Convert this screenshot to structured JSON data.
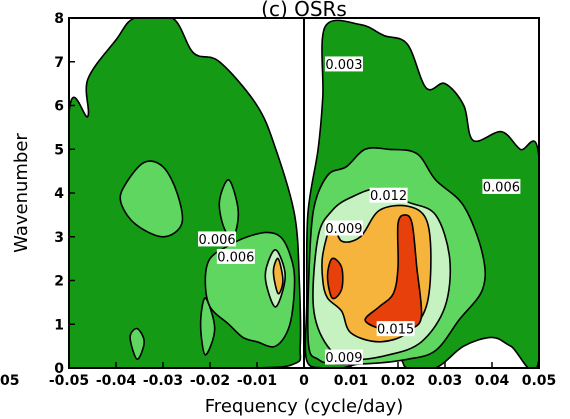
{
  "chart_data": {
    "type": "contour",
    "title": "(c) OSRs",
    "xlabel": "Frequency (cycle/day)",
    "ylabel": "Wavenumber",
    "xlim": [
      -0.05,
      0.05
    ],
    "ylim": [
      0,
      8
    ],
    "x_ticks": [
      {
        "value": -0.05,
        "label": "-0.05"
      },
      {
        "value": -0.04,
        "label": "-0.04"
      },
      {
        "value": -0.03,
        "label": "-0.03"
      },
      {
        "value": -0.02,
        "label": "-0.02"
      },
      {
        "value": -0.01,
        "label": "-0.01"
      },
      {
        "value": 0,
        "label": "0"
      },
      {
        "value": 0.01,
        "label": "0.01"
      },
      {
        "value": 0.02,
        "label": "0.02"
      },
      {
        "value": 0.03,
        "label": "0.03"
      },
      {
        "value": 0.04,
        "label": "0.04"
      },
      {
        "value": 0.05,
        "label": "0.05"
      }
    ],
    "y_ticks": [
      {
        "value": 0,
        "label": "0"
      },
      {
        "value": 1,
        "label": "1"
      },
      {
        "value": 2,
        "label": "2"
      },
      {
        "value": 3,
        "label": "3"
      },
      {
        "value": 4,
        "label": "4"
      },
      {
        "value": 5,
        "label": "5"
      },
      {
        "value": 6,
        "label": "6"
      },
      {
        "value": 7,
        "label": "7"
      },
      {
        "value": 8,
        "label": "8"
      }
    ],
    "left_edge_fragment": "05",
    "levels": [
      0.003,
      0.006,
      0.009,
      0.012,
      0.015
    ],
    "level_colors": [
      "#159A15",
      "#5FD65F",
      "#C5F2C0",
      "#F6B43C",
      "#E8400A"
    ],
    "regions": [
      {
        "level": 0.003,
        "points": [
          [
            -0.05,
            5.8
          ],
          [
            -0.046,
            5.75
          ],
          [
            -0.046,
            6.6
          ],
          [
            -0.04,
            7.5
          ],
          [
            -0.036,
            8
          ],
          [
            -0.028,
            8
          ],
          [
            -0.0235,
            7.2
          ],
          [
            -0.018,
            7.0
          ],
          [
            -0.01,
            6.0
          ],
          [
            -0.006,
            5.0
          ],
          [
            -0.002,
            3.5
          ],
          [
            -0.001,
            2.0
          ],
          [
            -0.0008,
            0.5
          ],
          [
            -0.002,
            0.1
          ],
          [
            -0.012,
            0.0
          ],
          [
            -0.05,
            0.0
          ]
        ]
      },
      {
        "level": 0.003,
        "points": [
          [
            0.0005,
            0.2
          ],
          [
            0.0006,
            1.5
          ],
          [
            0.0008,
            3.5
          ],
          [
            0.003,
            5.0
          ],
          [
            0.004,
            6.2
          ],
          [
            0.0045,
            7.8
          ],
          [
            0.012,
            7.85
          ],
          [
            0.017,
            7.6
          ],
          [
            0.022,
            7.4
          ],
          [
            0.026,
            6.4
          ],
          [
            0.03,
            6.5
          ],
          [
            0.034,
            6.0
          ],
          [
            0.036,
            5.2
          ],
          [
            0.042,
            5.4
          ],
          [
            0.046,
            5.0
          ],
          [
            0.05,
            4.8
          ],
          [
            0.05,
            0.2
          ],
          [
            0.044,
            0.5
          ],
          [
            0.04,
            0.7
          ],
          [
            0.034,
            0.5
          ],
          [
            0.028,
            0.0
          ],
          [
            0.022,
            0.0
          ],
          [
            0.02,
            0.2
          ],
          [
            0.012,
            0.1
          ],
          [
            0.008,
            0.0
          ],
          [
            0.004,
            0.0
          ]
        ]
      },
      {
        "level": 0.006,
        "points": [
          [
            -0.038,
            4.2
          ],
          [
            -0.034,
            4.7
          ],
          [
            -0.03,
            4.6
          ],
          [
            -0.027,
            4.0
          ],
          [
            -0.026,
            3.3
          ],
          [
            -0.03,
            3.0
          ],
          [
            -0.036,
            3.3
          ],
          [
            -0.039,
            3.8
          ]
        ]
      },
      {
        "level": 0.006,
        "points": [
          [
            -0.018,
            3.8
          ],
          [
            -0.016,
            4.3
          ],
          [
            -0.014,
            3.6
          ],
          [
            -0.015,
            3.0
          ],
          [
            -0.017,
            3.2
          ]
        ]
      },
      {
        "level": 0.006,
        "points": [
          [
            -0.02,
            2.5
          ],
          [
            -0.016,
            2.8
          ],
          [
            -0.012,
            3.0
          ],
          [
            -0.008,
            3.1
          ],
          [
            -0.005,
            3.0
          ],
          [
            -0.003,
            2.6
          ],
          [
            -0.002,
            2.0
          ],
          [
            -0.003,
            1.0
          ],
          [
            -0.006,
            0.5
          ],
          [
            -0.01,
            0.6
          ],
          [
            -0.013,
            0.7
          ],
          [
            -0.016,
            1.0
          ],
          [
            -0.02,
            1.4
          ],
          [
            -0.021,
            2.0
          ]
        ]
      },
      {
        "level": 0.006,
        "points": [
          [
            -0.037,
            0.7
          ],
          [
            -0.0355,
            0.2
          ],
          [
            -0.034,
            0.6
          ],
          [
            -0.0355,
            0.9
          ]
        ]
      },
      {
        "level": 0.006,
        "points": [
          [
            -0.022,
            1.0
          ],
          [
            -0.021,
            1.6
          ],
          [
            -0.019,
            0.9
          ],
          [
            -0.021,
            0.3
          ]
        ]
      },
      {
        "level": 0.006,
        "points": [
          [
            0.001,
            0.5
          ],
          [
            0.001,
            2.0
          ],
          [
            0.002,
            3.6
          ],
          [
            0.005,
            4.4
          ],
          [
            0.009,
            4.6
          ],
          [
            0.013,
            5.0
          ],
          [
            0.018,
            5.0
          ],
          [
            0.024,
            4.9
          ],
          [
            0.028,
            4.3
          ],
          [
            0.034,
            3.7
          ],
          [
            0.038,
            2.6
          ],
          [
            0.038,
            1.8
          ],
          [
            0.033,
            1.1
          ],
          [
            0.028,
            0.4
          ],
          [
            0.022,
            0.2
          ],
          [
            0.014,
            0.1
          ],
          [
            0.006,
            0.1
          ],
          [
            0.003,
            0.2
          ]
        ]
      },
      {
        "level": 0.009,
        "points": [
          [
            0.002,
            1.4
          ],
          [
            0.003,
            3.0
          ],
          [
            0.006,
            3.6
          ],
          [
            0.01,
            3.9
          ],
          [
            0.016,
            4.1
          ],
          [
            0.022,
            3.8
          ],
          [
            0.028,
            3.5
          ],
          [
            0.031,
            2.5
          ],
          [
            0.03,
            1.4
          ],
          [
            0.025,
            0.6
          ],
          [
            0.018,
            0.3
          ],
          [
            0.01,
            0.2
          ],
          [
            0.005,
            0.5
          ]
        ]
      },
      {
        "level": 0.009,
        "points": [
          [
            -0.008,
            2.3
          ],
          [
            -0.006,
            2.7
          ],
          [
            -0.004,
            2.1
          ],
          [
            -0.006,
            1.4
          ],
          [
            -0.008,
            1.9
          ]
        ]
      },
      {
        "level": 0.012,
        "points": [
          [
            0.004,
            2.6
          ],
          [
            0.006,
            3.3
          ],
          [
            0.008,
            2.9
          ],
          [
            0.012,
            3.0
          ],
          [
            0.016,
            3.6
          ],
          [
            0.022,
            3.7
          ],
          [
            0.026,
            3.4
          ],
          [
            0.027,
            2.5
          ],
          [
            0.026,
            1.4
          ],
          [
            0.022,
            0.8
          ],
          [
            0.016,
            0.6
          ],
          [
            0.01,
            0.8
          ],
          [
            0.008,
            1.3
          ],
          [
            0.005,
            1.6
          ],
          [
            0.004,
            2.0
          ]
        ]
      },
      {
        "level": 0.012,
        "points": [
          [
            -0.0065,
            2.2
          ],
          [
            -0.0055,
            2.5
          ],
          [
            -0.0045,
            2.0
          ],
          [
            -0.0055,
            1.7
          ]
        ]
      },
      {
        "level": 0.015,
        "points": [
          [
            0.005,
            2.1
          ],
          [
            0.006,
            2.5
          ],
          [
            0.008,
            2.3
          ],
          [
            0.008,
            1.8
          ],
          [
            0.006,
            1.6
          ]
        ]
      },
      {
        "level": 0.015,
        "points": [
          [
            0.02,
            3.3
          ],
          [
            0.0215,
            3.5
          ],
          [
            0.023,
            3.3
          ],
          [
            0.024,
            2.3
          ],
          [
            0.025,
            1.2
          ],
          [
            0.023,
            0.9
          ],
          [
            0.02,
            0.8
          ],
          [
            0.016,
            0.9
          ],
          [
            0.013,
            1.1
          ],
          [
            0.016,
            1.4
          ],
          [
            0.019,
            1.7
          ],
          [
            0.02,
            2.3
          ]
        ]
      }
    ],
    "contour_labels": [
      {
        "text": "0.003",
        "x": 0.0085,
        "y": 6.95
      },
      {
        "text": "0.006",
        "x": 0.042,
        "y": 4.15
      },
      {
        "text": "0.012",
        "x": 0.018,
        "y": 3.95
      },
      {
        "text": "0.009",
        "x": 0.0085,
        "y": 3.2
      },
      {
        "text": "0.006",
        "x": -0.0185,
        "y": 2.95
      },
      {
        "text": "0.006",
        "x": -0.0145,
        "y": 2.55
      },
      {
        "text": "0.015",
        "x": 0.0195,
        "y": 0.9
      },
      {
        "text": "0.009",
        "x": 0.0085,
        "y": 0.25
      }
    ],
    "zero_line_x": 0,
    "grid": false,
    "legend": "none"
  }
}
